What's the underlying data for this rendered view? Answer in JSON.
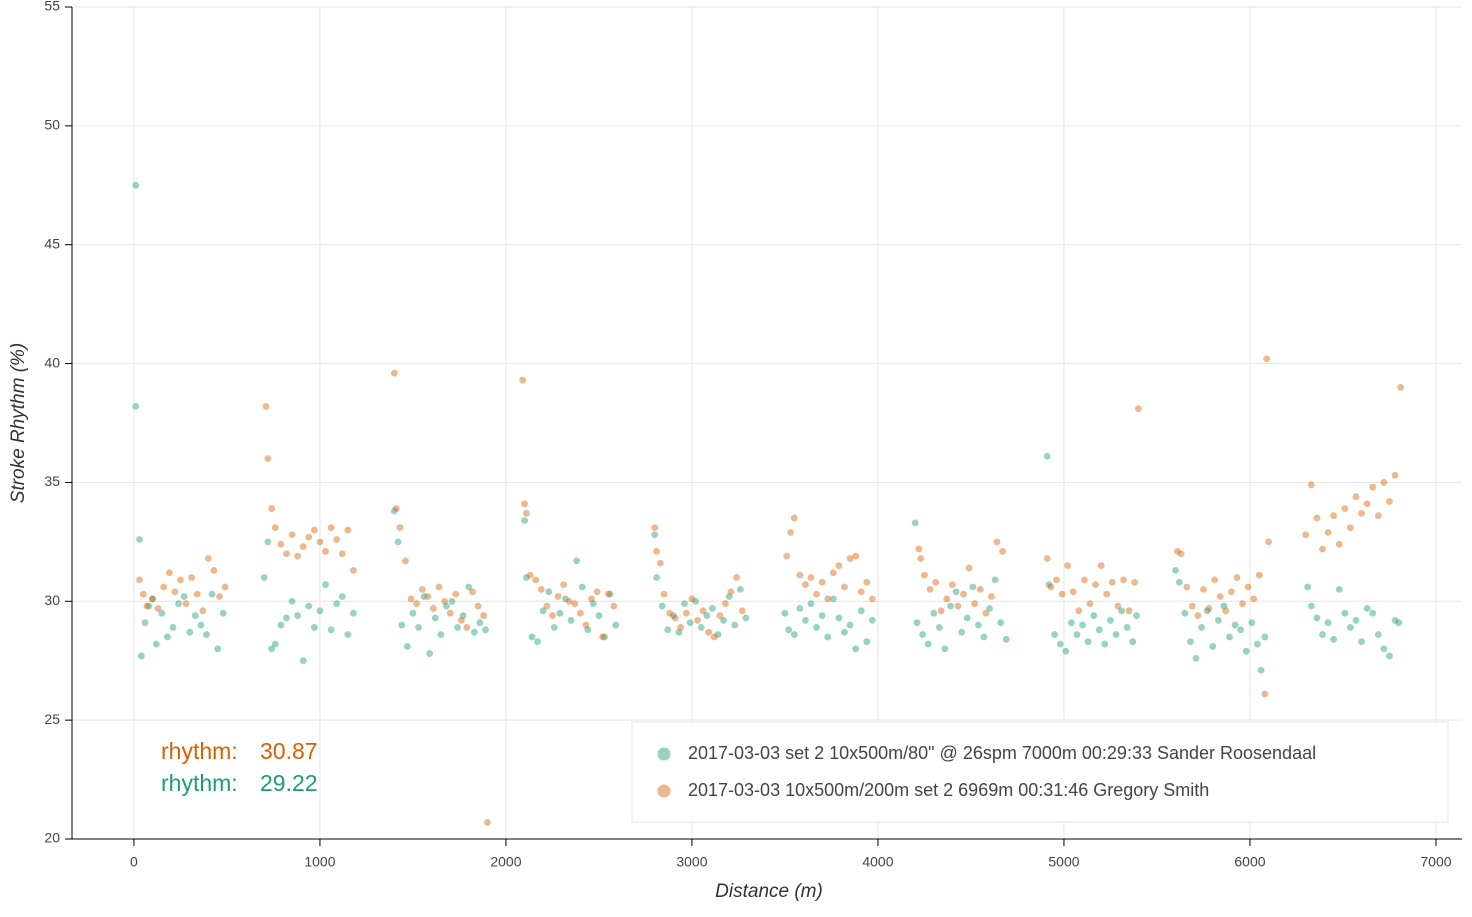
{
  "chart_data": {
    "type": "scatter",
    "x_label": "Distance (m)",
    "y_label": "Stroke Rhythm (%)",
    "xlim": [
      -333,
      7140
    ],
    "ylim": [
      20,
      55
    ],
    "xticks": [
      0,
      1000,
      2000,
      3000,
      4000,
      5000,
      6000,
      7000
    ],
    "yticks": [
      20,
      25,
      30,
      35,
      40,
      45,
      50,
      55
    ],
    "grid": true,
    "legend_position": "bottom-right",
    "annotations": [
      {
        "label": "rhythm:",
        "value": 30.87,
        "color": "#d95f02"
      },
      {
        "label": "rhythm:",
        "value": 29.22,
        "color": "#1b9e77"
      }
    ],
    "series": [
      {
        "name": "2017-03-03 set 2 10x500m/80\" @ 26spm 7000m 00:29:33 Sander Roosendaal",
        "color": "#1b9e77",
        "x": [
          10,
          10,
          30,
          40,
          60,
          80,
          100,
          120,
          150,
          180,
          210,
          240,
          270,
          300,
          330,
          360,
          390,
          420,
          450,
          480,
          700,
          720,
          740,
          760,
          790,
          820,
          850,
          880,
          910,
          940,
          970,
          1000,
          1030,
          1060,
          1090,
          1120,
          1150,
          1180,
          1400,
          1420,
          1440,
          1470,
          1500,
          1530,
          1560,
          1590,
          1620,
          1650,
          1680,
          1710,
          1740,
          1770,
          1800,
          1830,
          1860,
          1890,
          2100,
          2110,
          2140,
          2170,
          2200,
          2230,
          2260,
          2290,
          2320,
          2350,
          2380,
          2410,
          2440,
          2470,
          2500,
          2530,
          2560,
          2590,
          2800,
          2810,
          2840,
          2870,
          2900,
          2930,
          2960,
          2990,
          3020,
          3050,
          3080,
          3110,
          3140,
          3170,
          3200,
          3230,
          3260,
          3290,
          3500,
          3520,
          3550,
          3580,
          3610,
          3640,
          3670,
          3700,
          3730,
          3760,
          3790,
          3820,
          3850,
          3880,
          3910,
          3940,
          3970,
          4200,
          4210,
          4240,
          4270,
          4300,
          4330,
          4360,
          4390,
          4420,
          4450,
          4480,
          4510,
          4540,
          4570,
          4600,
          4630,
          4660,
          4690,
          4910,
          4920,
          4950,
          4980,
          5010,
          5040,
          5070,
          5100,
          5130,
          5160,
          5190,
          5220,
          5250,
          5280,
          5310,
          5340,
          5370,
          5390,
          5600,
          5620,
          5650,
          5680,
          5710,
          5740,
          5770,
          5800,
          5830,
          5860,
          5890,
          5920,
          5950,
          5980,
          6010,
          6040,
          6060,
          6080,
          6310,
          6330,
          6360,
          6390,
          6420,
          6450,
          6480,
          6510,
          6540,
          6570,
          6600,
          6630,
          6660,
          6690,
          6720,
          6750,
          6780,
          6800
        ],
        "values": [
          47.5,
          38.2,
          32.6,
          27.7,
          29.1,
          29.8,
          30.1,
          28.2,
          29.5,
          28.5,
          28.9,
          29.9,
          30.2,
          28.7,
          29.4,
          29.0,
          28.6,
          30.3,
          28.0,
          29.5,
          31.0,
          32.5,
          28.0,
          28.2,
          29.0,
          29.3,
          30.0,
          29.4,
          27.5,
          29.8,
          28.9,
          29.6,
          30.7,
          28.8,
          29.9,
          30.2,
          28.6,
          29.5,
          33.8,
          32.5,
          29.0,
          28.1,
          29.5,
          28.9,
          30.2,
          27.8,
          29.3,
          28.6,
          29.8,
          30.0,
          28.9,
          29.4,
          30.6,
          28.7,
          29.1,
          28.8,
          33.4,
          31.0,
          28.5,
          28.3,
          29.6,
          30.4,
          28.9,
          29.5,
          30.1,
          29.2,
          31.7,
          30.6,
          28.8,
          29.9,
          29.4,
          28.5,
          30.3,
          29.0,
          32.8,
          31.0,
          29.8,
          28.8,
          29.4,
          28.7,
          29.9,
          29.1,
          30.0,
          28.9,
          29.4,
          29.7,
          28.6,
          29.2,
          30.2,
          29.0,
          30.5,
          29.3,
          29.5,
          28.8,
          28.6,
          29.7,
          29.2,
          29.9,
          28.9,
          29.4,
          28.5,
          30.1,
          29.3,
          28.7,
          29.0,
          28.0,
          29.6,
          28.3,
          29.2,
          33.3,
          29.1,
          28.6,
          28.2,
          29.5,
          28.9,
          28.0,
          29.8,
          30.4,
          28.7,
          29.3,
          30.6,
          29.0,
          28.5,
          29.7,
          30.9,
          29.1,
          28.4,
          36.1,
          30.7,
          28.6,
          28.2,
          27.9,
          29.1,
          28.6,
          29.0,
          28.3,
          29.4,
          28.8,
          28.2,
          29.2,
          28.6,
          29.6,
          28.9,
          28.3,
          29.4,
          31.3,
          30.8,
          29.5,
          28.3,
          27.6,
          28.9,
          29.6,
          28.1,
          29.2,
          29.8,
          28.5,
          29.0,
          28.8,
          27.9,
          29.1,
          28.2,
          27.1,
          28.5,
          30.6,
          29.8,
          29.3,
          28.6,
          29.1,
          28.4,
          30.5,
          29.5,
          28.9,
          29.2,
          28.3,
          29.7,
          29.5,
          28.6,
          28.0,
          27.7,
          29.2,
          29.1
        ]
      },
      {
        "name": "2017-03-03 10x500m/200m set 2 6969m 00:31:46 Gregory Smith",
        "color": "#d95f02",
        "x": [
          30,
          50,
          70,
          100,
          130,
          160,
          190,
          220,
          250,
          280,
          310,
          340,
          370,
          400,
          430,
          460,
          490,
          710,
          720,
          740,
          760,
          790,
          820,
          850,
          880,
          910,
          940,
          970,
          1000,
          1030,
          1060,
          1090,
          1120,
          1150,
          1180,
          1400,
          1410,
          1430,
          1460,
          1490,
          1520,
          1550,
          1580,
          1610,
          1640,
          1670,
          1700,
          1730,
          1760,
          1790,
          1820,
          1850,
          1880,
          1900,
          2090,
          2100,
          2110,
          2130,
          2160,
          2190,
          2220,
          2250,
          2280,
          2310,
          2340,
          2370,
          2400,
          2430,
          2460,
          2490,
          2520,
          2550,
          2580,
          2800,
          2810,
          2830,
          2850,
          2880,
          2910,
          2940,
          2970,
          3000,
          3030,
          3060,
          3090,
          3120,
          3150,
          3180,
          3210,
          3240,
          3270,
          3510,
          3530,
          3550,
          3580,
          3610,
          3640,
          3670,
          3700,
          3730,
          3760,
          3790,
          3820,
          3850,
          3880,
          3910,
          3940,
          3970,
          4220,
          4230,
          4250,
          4280,
          4310,
          4340,
          4370,
          4400,
          4430,
          4460,
          4490,
          4520,
          4550,
          4580,
          4610,
          4640,
          4670,
          4910,
          4930,
          4960,
          4990,
          5020,
          5050,
          5080,
          5110,
          5140,
          5170,
          5200,
          5230,
          5260,
          5290,
          5320,
          5350,
          5380,
          5400,
          5610,
          5630,
          5660,
          5690,
          5720,
          5750,
          5780,
          5810,
          5840,
          5870,
          5900,
          5930,
          5960,
          5990,
          6020,
          6050,
          6080,
          6090,
          6100,
          6300,
          6330,
          6360,
          6390,
          6420,
          6450,
          6480,
          6510,
          6540,
          6570,
          6600,
          6630,
          6660,
          6690,
          6720,
          6750,
          6780,
          6810
        ],
        "values": [
          30.9,
          30.3,
          29.8,
          30.1,
          29.7,
          30.6,
          31.2,
          30.4,
          30.9,
          29.9,
          31.0,
          30.3,
          29.6,
          31.8,
          31.3,
          30.2,
          30.6,
          38.2,
          36.0,
          33.9,
          33.1,
          32.4,
          32.0,
          32.8,
          31.9,
          32.3,
          32.7,
          33.0,
          32.5,
          32.1,
          33.1,
          32.6,
          32.0,
          33.0,
          31.3,
          39.6,
          33.9,
          33.1,
          31.7,
          30.1,
          29.9,
          30.5,
          30.2,
          29.7,
          30.6,
          30.0,
          29.5,
          30.3,
          29.2,
          28.9,
          30.4,
          29.8,
          29.4,
          20.7,
          39.3,
          34.1,
          33.7,
          31.1,
          30.9,
          30.5,
          29.8,
          29.4,
          30.2,
          30.7,
          30.0,
          29.9,
          29.5,
          29.0,
          30.1,
          30.4,
          28.5,
          30.3,
          29.8,
          33.1,
          32.1,
          31.6,
          30.3,
          29.5,
          29.3,
          28.9,
          29.5,
          30.1,
          29.2,
          29.6,
          28.7,
          28.5,
          29.4,
          29.9,
          30.4,
          31.0,
          29.6,
          31.9,
          32.9,
          33.5,
          31.1,
          30.7,
          31.0,
          30.3,
          30.8,
          30.1,
          31.2,
          31.5,
          30.6,
          31.8,
          31.9,
          30.4,
          30.8,
          30.1,
          32.2,
          31.8,
          31.1,
          30.5,
          30.8,
          29.6,
          30.1,
          30.7,
          29.8,
          30.3,
          31.4,
          29.9,
          30.5,
          29.5,
          30.2,
          32.5,
          32.1,
          31.8,
          30.6,
          30.9,
          30.3,
          31.5,
          30.4,
          29.6,
          30.9,
          29.9,
          30.7,
          31.5,
          30.3,
          30.8,
          29.8,
          30.9,
          29.6,
          30.8,
          38.1,
          32.1,
          32.0,
          30.6,
          29.8,
          29.4,
          30.5,
          29.7,
          30.9,
          30.2,
          29.6,
          30.4,
          31.0,
          29.9,
          30.6,
          30.1,
          31.1,
          26.1,
          40.2,
          32.5,
          32.8,
          34.9,
          33.5,
          32.2,
          32.9,
          33.6,
          32.4,
          33.9,
          33.1,
          34.4,
          33.7,
          34.1,
          34.8,
          33.6,
          35.0,
          34.2,
          35.3,
          39.0
        ]
      }
    ]
  }
}
